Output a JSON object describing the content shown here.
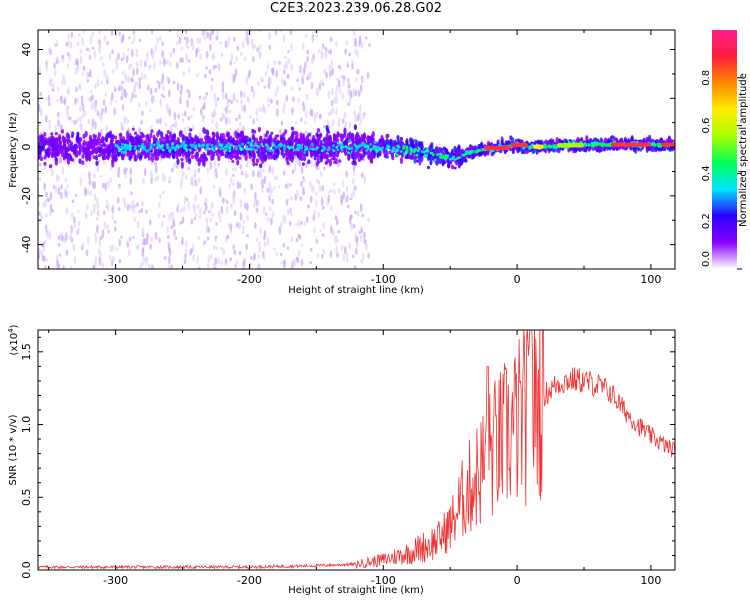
{
  "title": "C2E3.2023.239.06.28.G02",
  "chart_data": [
    {
      "type": "heatmap",
      "xlabel": "Height of straight line (km)",
      "ylabel": "Frequency (Hz)",
      "xlim": [
        -358,
        118
      ],
      "ylim": [
        -50,
        48
      ],
      "xticks": [
        -300,
        -200,
        -100,
        0,
        100
      ],
      "yticks": [
        -40,
        -20,
        0,
        20,
        40
      ],
      "xtick_labels": [
        "-300",
        "-200",
        "-100",
        "0",
        "100"
      ],
      "ytick_labels": [
        "-40",
        "-20",
        "0",
        "20",
        "40"
      ],
      "colorbar": {
        "label": "Normalized spectral amplitude",
        "range": [
          0.0,
          1.0
        ],
        "ticks": [
          0.0,
          0.2,
          0.4,
          0.6,
          0.8
        ],
        "tick_labels": [
          "0.0",
          "0.2",
          "0.4",
          "0.6",
          "0.8"
        ],
        "colors": [
          "#ffffff",
          "#c9a4f5",
          "#8a00ff",
          "#2a00ff",
          "#00e6ff",
          "#00ff55",
          "#a8ff00",
          "#ffee00",
          "#ff8800",
          "#ff1e3c",
          "#ff1e8a"
        ]
      },
      "band_center": [
        {
          "x": -358,
          "y": 0
        },
        {
          "x": -200,
          "y": 0
        },
        {
          "x": -100,
          "y": 0
        },
        {
          "x": -70,
          "y": -2
        },
        {
          "x": -55,
          "y": -4
        },
        {
          "x": -48,
          "y": -5
        },
        {
          "x": -40,
          "y": -3
        },
        {
          "x": -25,
          "y": -1
        },
        {
          "x": -10,
          "y": 0
        },
        {
          "x": 0,
          "y": 1
        },
        {
          "x": 10,
          "y": 0
        },
        {
          "x": 50,
          "y": 1
        },
        {
          "x": 100,
          "y": 1
        },
        {
          "x": 118,
          "y": 1
        }
      ]
    },
    {
      "type": "line",
      "xlabel": "Height of straight line (km)",
      "ylabel": "SNR (10 * v/v)",
      "y_scale_label": "(x10",
      "y_scale_exp": "4",
      "y_scale_close": ")",
      "xlim": [
        -358,
        118
      ],
      "ylim": [
        0,
        1.65
      ],
      "xticks": [
        -300,
        -200,
        -100,
        0,
        100
      ],
      "yticks": [
        0.0,
        0.5,
        1.0,
        1.5
      ],
      "xtick_labels": [
        "-300",
        "-200",
        "-100",
        "0",
        "100"
      ],
      "ytick_labels": [
        "0.0",
        "0.5",
        "1.0",
        "1.5"
      ],
      "series": [
        {
          "name": "SNR",
          "color": "#f03030",
          "points": [
            {
              "x": -358,
              "y": 0.02
            },
            {
              "x": -300,
              "y": 0.02
            },
            {
              "x": -250,
              "y": 0.02
            },
            {
              "x": -200,
              "y": 0.02
            },
            {
              "x": -150,
              "y": 0.03
            },
            {
              "x": -120,
              "y": 0.04
            },
            {
              "x": -100,
              "y": 0.07
            },
            {
              "x": -80,
              "y": 0.12
            },
            {
              "x": -60,
              "y": 0.2
            },
            {
              "x": -50,
              "y": 0.3
            },
            {
              "x": -40,
              "y": 0.5
            },
            {
              "x": -30,
              "y": 0.65
            },
            {
              "x": -20,
              "y": 0.8
            },
            {
              "x": -10,
              "y": 0.9
            },
            {
              "x": 0,
              "y": 1.0
            },
            {
              "x": 10,
              "y": 1.1
            },
            {
              "x": 20,
              "y": 1.2
            },
            {
              "x": 30,
              "y": 1.28
            },
            {
              "x": 40,
              "y": 1.31
            },
            {
              "x": 50,
              "y": 1.3
            },
            {
              "x": 60,
              "y": 1.27
            },
            {
              "x": 70,
              "y": 1.22
            },
            {
              "x": 80,
              "y": 1.1
            },
            {
              "x": 90,
              "y": 1.0
            },
            {
              "x": 100,
              "y": 0.92
            },
            {
              "x": 110,
              "y": 0.86
            },
            {
              "x": 118,
              "y": 0.82
            }
          ]
        }
      ]
    }
  ]
}
